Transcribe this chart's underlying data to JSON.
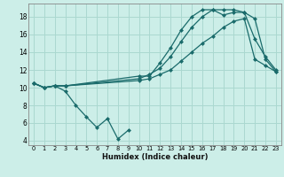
{
  "xlabel": "Humidex (Indice chaleur)",
  "bg_color": "#cceee8",
  "grid_color": "#aad8d0",
  "line_color": "#1a6b6b",
  "xlim": [
    -0.5,
    23.5
  ],
  "ylim": [
    3.5,
    19.5
  ],
  "yticks": [
    4,
    6,
    8,
    10,
    12,
    14,
    16,
    18
  ],
  "xticks": [
    0,
    1,
    2,
    3,
    4,
    5,
    6,
    7,
    8,
    9,
    10,
    11,
    12,
    13,
    14,
    15,
    16,
    17,
    18,
    19,
    20,
    21,
    22,
    23
  ],
  "line1_x": [
    0,
    1,
    2,
    3,
    4,
    5,
    6,
    7,
    8,
    9
  ],
  "line1_y": [
    10.5,
    10.0,
    10.2,
    9.6,
    8.0,
    6.7,
    5.5,
    6.5,
    4.2,
    5.2
  ],
  "line2_x": [
    0,
    1,
    2,
    3,
    10,
    11,
    12,
    13,
    14,
    15,
    16,
    17,
    18,
    19,
    20,
    21,
    22,
    23
  ],
  "line2_y": [
    10.5,
    10.0,
    10.2,
    10.2,
    10.8,
    11.0,
    11.5,
    12.0,
    13.0,
    14.0,
    15.0,
    15.8,
    16.8,
    17.5,
    17.8,
    13.2,
    12.5,
    11.8
  ],
  "line3_x": [
    0,
    1,
    2,
    3,
    10,
    11,
    12,
    13,
    14,
    15,
    16,
    17,
    18,
    19,
    20,
    21,
    22,
    23
  ],
  "line3_y": [
    10.5,
    10.0,
    10.2,
    10.2,
    11.0,
    11.5,
    12.2,
    13.5,
    15.2,
    16.8,
    18.0,
    18.8,
    18.8,
    18.8,
    18.5,
    17.8,
    13.2,
    11.8
  ],
  "line4_x": [
    0,
    1,
    2,
    3,
    10,
    11,
    12,
    13,
    14,
    15,
    16,
    17,
    18,
    19,
    20,
    21,
    22,
    23
  ],
  "line4_y": [
    10.5,
    10.0,
    10.2,
    10.2,
    11.3,
    11.3,
    12.8,
    14.5,
    16.5,
    18.0,
    18.8,
    18.8,
    18.2,
    18.5,
    18.5,
    15.5,
    13.5,
    12.0
  ]
}
